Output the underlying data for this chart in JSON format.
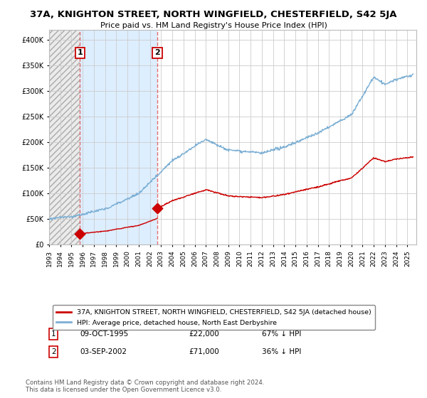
{
  "title": "37A, KNIGHTON STREET, NORTH WINGFIELD, CHESTERFIELD, S42 5JA",
  "subtitle": "Price paid vs. HM Land Registry's House Price Index (HPI)",
  "ylim": [
    0,
    420000
  ],
  "yticks": [
    0,
    50000,
    100000,
    150000,
    200000,
    250000,
    300000,
    350000,
    400000
  ],
  "ytick_labels": [
    "£0",
    "£50K",
    "£100K",
    "£150K",
    "£200K",
    "£250K",
    "£300K",
    "£350K",
    "£400K"
  ],
  "legend_entry1": "37A, KNIGHTON STREET, NORTH WINGFIELD, CHESTERFIELD, S42 5JA (detached house)",
  "legend_entry2": "HPI: Average price, detached house, North East Derbyshire",
  "sale1_year_f": 1995.75,
  "sale1_price": 22000,
  "sale2_year_f": 2002.67,
  "sale2_price": 71000,
  "footer": "Contains HM Land Registry data © Crown copyright and database right 2024.\nThis data is licensed under the Open Government Licence v3.0.",
  "hpi_color": "#7bafd4",
  "price_color": "#cc0000",
  "marker_color": "#cc0000",
  "background_color": "#ffffff",
  "grid_color": "#cccccc",
  "hatch_facecolor": "#e8e8e8",
  "blue_fill_color": "#ddeeff"
}
